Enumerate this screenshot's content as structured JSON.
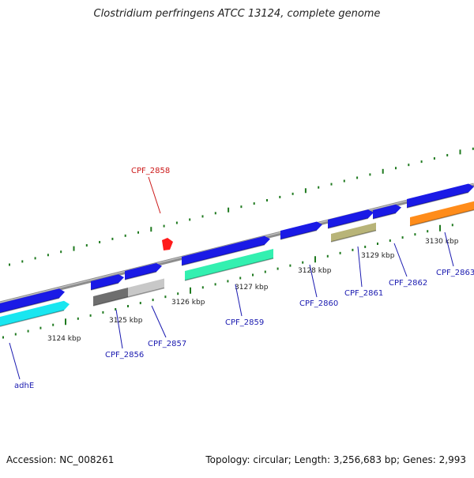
{
  "title": "Clostridium perfringens ATCC 13124, complete genome",
  "footer": {
    "accession": "Accession: NC_008261",
    "summary": "Topology: circular; Length: 3,256,683 bp; Genes: 2,993"
  },
  "colors": {
    "backbone": "#8c8c8c",
    "tick": "#1f7a1f",
    "cds": "#1a1ae6",
    "label_blue": "#1a1ab0",
    "label_red": "#cc1a1a",
    "feature_cyan": "#19e6f0",
    "feature_darkgray": "#6e6e6e",
    "feature_lightgray": "#c8c8c8",
    "feature_mint": "#33f0b0",
    "feature_olive": "#b8b478",
    "feature_orange": "#ff8c1a",
    "feature_red": "#ff1a1a"
  },
  "scale_labels": [
    {
      "text": "3124 kbp"
    },
    {
      "text": "3125 kbp"
    },
    {
      "text": "3126 kbp"
    },
    {
      "text": "3127 kbp"
    },
    {
      "text": "3128 kbp"
    },
    {
      "text": "3129 kbp"
    },
    {
      "text": "3130 kbp"
    }
  ],
  "gene_labels": [
    {
      "text": "CPF_2858",
      "color": "red"
    },
    {
      "text": "adhE",
      "color": "blue"
    },
    {
      "text": "CPF_2856",
      "color": "blue"
    },
    {
      "text": "CPF_2857",
      "color": "blue"
    },
    {
      "text": "CPF_2859",
      "color": "blue"
    },
    {
      "text": "CPF_2860",
      "color": "blue"
    },
    {
      "text": "CPF_2861",
      "color": "blue"
    },
    {
      "text": "CPF_2862",
      "color": "blue"
    },
    {
      "text": "CPF_2863",
      "color": "blue"
    }
  ]
}
